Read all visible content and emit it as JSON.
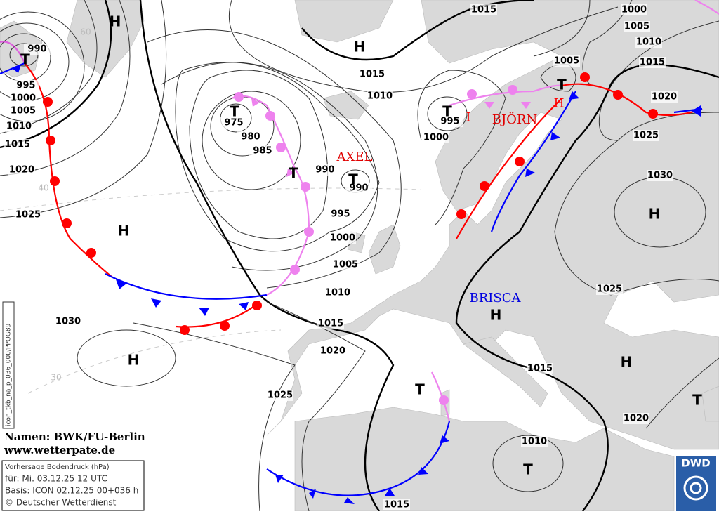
{
  "map": {
    "isobar_labels": [
      990,
      995,
      1000,
      1005,
      1010,
      1015,
      1020,
      1025,
      975,
      980,
      985,
      990,
      990,
      995,
      1000,
      1005,
      1010,
      1015,
      1020,
      1025,
      1030,
      1010,
      1015,
      1015,
      995,
      1000,
      1005,
      1000,
      1005,
      1010,
      1015,
      1020,
      1025,
      1030,
      1025,
      1015,
      1020,
      1010,
      1015
    ],
    "pressure_centers": [
      "H",
      "H",
      "T",
      "T",
      "T",
      "T",
      "T",
      "T",
      "H",
      "H",
      "H",
      "H",
      "H",
      "T",
      "T",
      "T"
    ],
    "secondary_centers": [
      "H",
      "I"
    ],
    "system_names": [
      "AXEL",
      "BJÖRN",
      "BRISCA"
    ],
    "latitude_labels": [
      "60",
      "40",
      "30"
    ],
    "product_id": "icon_tkb_na_p_036_000/PPOG89"
  },
  "footer": {
    "names": "Namen: BWK/FU-Berlin",
    "website": "www.wetterpate.de",
    "info_lines": [
      "Vorhersage Bodendruck (hPa)",
      "für:  Mi. 03.12.25  12 UTC",
      "Basis: ICON  02.12.25 00+036 h",
      "© Deutscher Wetterdienst"
    ],
    "logo": "DWD"
  }
}
